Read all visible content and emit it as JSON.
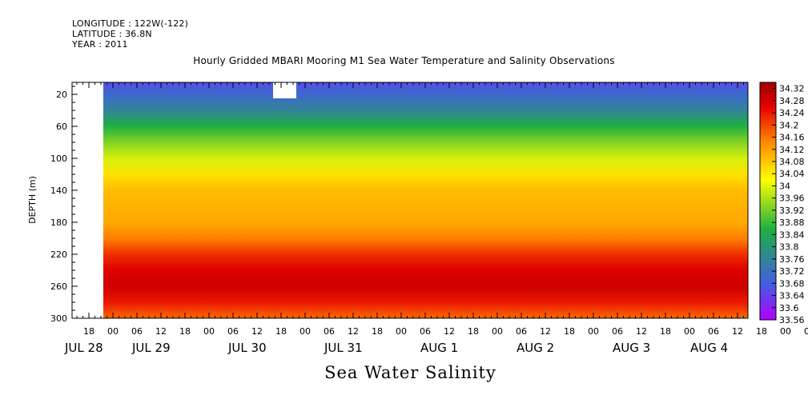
{
  "header": {
    "longitude": "LONGITUDE : 122W(-122)",
    "latitude": "LATITUDE : 36.8N",
    "year": "YEAR : 2011"
  },
  "chart_data": {
    "type": "heatmap",
    "title": "Hourly Gridded MBARI Mooring M1 Sea Water Temperature and Salinity Observations",
    "xlabel": "Sea Water Salinity",
    "ylabel": "DEPTH (m)",
    "x_hour_ticks": [
      "18",
      "00",
      "06",
      "12",
      "18",
      "00",
      "06",
      "12",
      "18",
      "00",
      "06",
      "12",
      "18",
      "00",
      "06",
      "12",
      "18",
      "00",
      "06",
      "12",
      "18",
      "00",
      "06",
      "12",
      "18",
      "00",
      "06",
      "12",
      "18",
      "00",
      "06",
      "12"
    ],
    "x_day_labels": [
      "JUL 28",
      "JUL 29",
      "JUL 30",
      "JUL 31",
      "AUG  1",
      "AUG  2",
      "AUG  3",
      "AUG  4"
    ],
    "y_ticks": [
      20,
      60,
      100,
      140,
      180,
      220,
      260,
      300
    ],
    "ylim": [
      300,
      5
    ],
    "depth_profile": {
      "depth": [
        5,
        20,
        40,
        60,
        80,
        100,
        120,
        140,
        160,
        180,
        200,
        220,
        240,
        260,
        280,
        300
      ],
      "salinity": [
        33.66,
        33.7,
        33.76,
        33.86,
        33.93,
        33.99,
        34.05,
        34.09,
        34.1,
        34.11,
        34.15,
        34.22,
        34.27,
        34.29,
        34.24,
        34.17
      ]
    },
    "colorbar": {
      "levels": [
        34.32,
        34.28,
        34.24,
        34.2,
        34.16,
        34.12,
        34.08,
        34.04,
        34,
        33.96,
        33.92,
        33.88,
        33.84,
        33.8,
        33.76,
        33.72,
        33.68,
        33.64,
        33.6,
        33.56
      ],
      "range": [
        33.56,
        34.34
      ],
      "colors": {
        "low": "#b000ff",
        "blue": "#4060e0",
        "green": "#20b040",
        "yellow": "#ffff00",
        "orange": "#ff8c00",
        "red": "#e80000",
        "high": "#a00000"
      }
    }
  }
}
